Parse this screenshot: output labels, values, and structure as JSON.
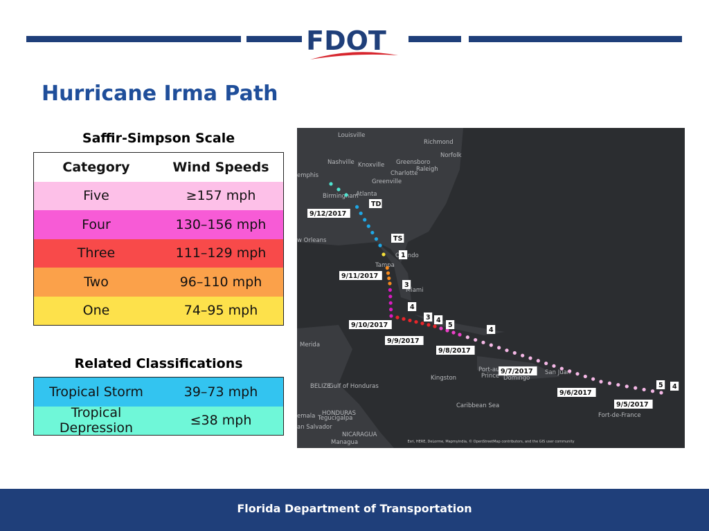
{
  "header": {
    "logo": "FDOT"
  },
  "title": "Hurricane Irma Path",
  "scale_table": {
    "caption": "Saffir-Simpson Scale",
    "columns": [
      "Category",
      "Wind Speeds"
    ],
    "rows": [
      [
        "Five",
        "≥157 mph"
      ],
      [
        "Four",
        "130–156 mph"
      ],
      [
        "Three",
        "111–129 mph"
      ],
      [
        "Two",
        "96–110 mph"
      ],
      [
        "One",
        "74–95 mph"
      ]
    ]
  },
  "related_table": {
    "caption": "Related Classifications",
    "rows": [
      [
        "Tropical Storm",
        "39–73 mph"
      ],
      [
        "Tropical Depression",
        "≤38 mph"
      ]
    ]
  },
  "map": {
    "places": [
      "Louisville",
      "Richmond",
      "Norfolk",
      "Nashville",
      "Knoxville",
      "Greensboro",
      "Raleigh",
      "Charlotte",
      "Greenville",
      "emphis",
      "Birmingham",
      "Atlanta",
      "w Orleans",
      "Orlando",
      "Tampa",
      "Miami",
      "Merida",
      "Kingston",
      "Port-au-",
      "Prince",
      "Domingo",
      "San Juan",
      "BELIZE",
      "Gulf of Honduras",
      "Caribbean Sea",
      "HONDURAS",
      "Tegucigalpa",
      "an Salvador",
      "NICARAGUA",
      "Managua",
      "Fort-de-France",
      "emala"
    ],
    "track_labels": [
      "9/12/2017",
      "TD",
      "TS",
      "1",
      "9/11/2017",
      "3",
      "4",
      "9/10/2017",
      "3",
      "4",
      "5",
      "4",
      "9/9/2017",
      "9/8/2017",
      "9/7/2017",
      "9/6/2017",
      "9/5/2017",
      "5",
      "4"
    ],
    "attribution": "Esri, HERE, DeLorme, Mapmyindia, © OpenStreetMap contributors, and the GIS user community"
  },
  "footer": "Florida Department of Transportation"
}
